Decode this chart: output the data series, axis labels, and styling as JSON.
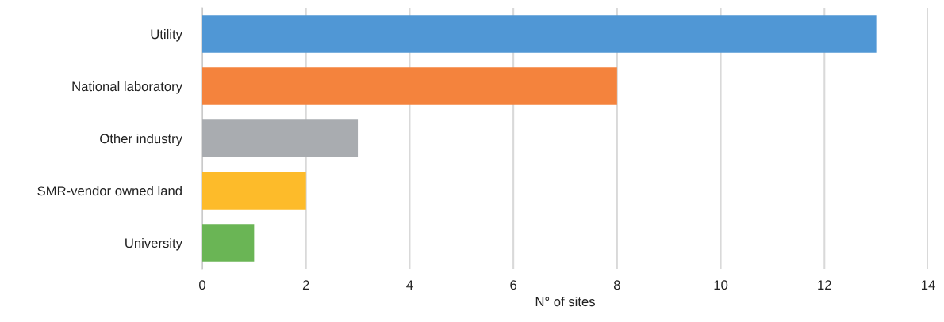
{
  "chart_data": {
    "type": "bar",
    "orientation": "horizontal",
    "xlabel": "N° of sites",
    "categories": [
      "Utility",
      "National laboratory",
      "Other industry",
      "SMR-vendor owned land",
      "University"
    ],
    "values": [
      13,
      8,
      3,
      2,
      1
    ],
    "colors": [
      "#5097d5",
      "#f4833d",
      "#a9acb0",
      "#fdbb2a",
      "#6ab555"
    ],
    "xlim": [
      0,
      14
    ],
    "xticks": [
      0,
      2,
      4,
      6,
      8,
      10,
      12,
      14
    ],
    "grid": "x"
  }
}
